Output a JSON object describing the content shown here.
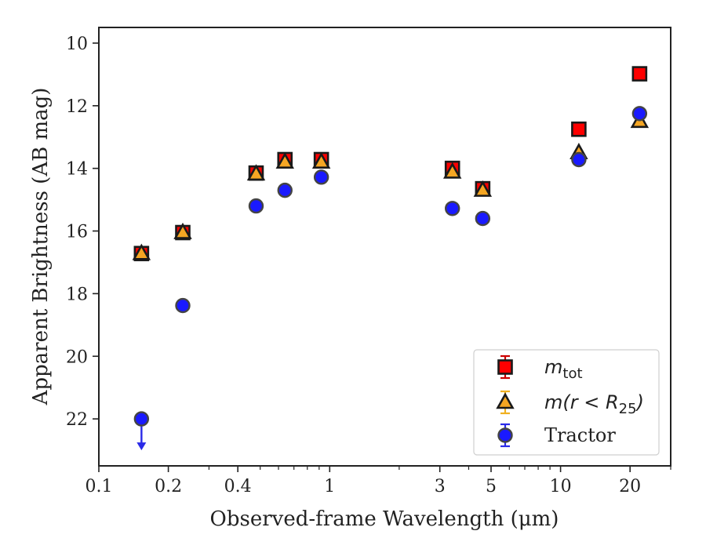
{
  "chart_data": {
    "type": "scatter",
    "xscale": "log",
    "yinverted": true,
    "xlim": [
      0.1,
      30
    ],
    "ylim": [
      23.5,
      9.5
    ],
    "xlabel": "Observed-frame Wavelength (μm)",
    "ylabel": "Apparent Brightness (AB mag)",
    "x_ticks": [
      0.1,
      0.2,
      0.4,
      1,
      3,
      5,
      10,
      20
    ],
    "x_tick_labels": [
      "0.1",
      "0.2",
      "0.4",
      "1",
      "3",
      "5",
      "10",
      "20"
    ],
    "y_ticks": [
      10,
      12,
      14,
      16,
      18,
      20,
      22
    ],
    "y_tick_labels": [
      "10",
      "12",
      "14",
      "16",
      "18",
      "20",
      "22"
    ],
    "legend_position": "lower-right",
    "series": [
      {
        "name": "m_tot",
        "legend_label": "m_tot",
        "marker": "square",
        "color": "#ff0000",
        "edge": "#1a1a1a",
        "errorbar_color": "#cc0000",
        "points": [
          {
            "x": 0.153,
            "y": 16.72
          },
          {
            "x": 0.231,
            "y": 16.05
          },
          {
            "x": 0.48,
            "y": 14.15
          },
          {
            "x": 0.64,
            "y": 13.72
          },
          {
            "x": 0.92,
            "y": 13.72
          },
          {
            "x": 3.4,
            "y": 14.0
          },
          {
            "x": 4.6,
            "y": 14.65
          },
          {
            "x": 12.0,
            "y": 12.75
          },
          {
            "x": 22.0,
            "y": 10.98
          }
        ]
      },
      {
        "name": "m(r<R25)",
        "legend_label": "m(r < R25)",
        "marker": "triangle",
        "color": "#f5a623",
        "edge": "#1a1a1a",
        "errorbar_color": "#f0b020",
        "points": [
          {
            "x": 0.153,
            "y": 16.72
          },
          {
            "x": 0.231,
            "y": 16.05
          },
          {
            "x": 0.48,
            "y": 14.18
          },
          {
            "x": 0.64,
            "y": 13.8
          },
          {
            "x": 0.92,
            "y": 13.8
          },
          {
            "x": 3.4,
            "y": 14.12
          },
          {
            "x": 4.6,
            "y": 14.7
          },
          {
            "x": 12.0,
            "y": 13.5
          },
          {
            "x": 22.0,
            "y": 12.5
          }
        ]
      },
      {
        "name": "Tractor",
        "legend_label": "Tractor",
        "marker": "circle",
        "color": "#1a1aff",
        "edge": "#444444",
        "errorbar_color": "#2a2ae8",
        "points": [
          {
            "x": 0.153,
            "y": 22.0,
            "upper_limit": true
          },
          {
            "x": 0.231,
            "y": 18.38
          },
          {
            "x": 0.48,
            "y": 15.2
          },
          {
            "x": 0.64,
            "y": 14.7
          },
          {
            "x": 0.92,
            "y": 14.28
          },
          {
            "x": 3.4,
            "y": 15.28
          },
          {
            "x": 4.6,
            "y": 15.6
          },
          {
            "x": 12.0,
            "y": 13.72
          },
          {
            "x": 22.0,
            "y": 12.25
          }
        ]
      }
    ]
  }
}
